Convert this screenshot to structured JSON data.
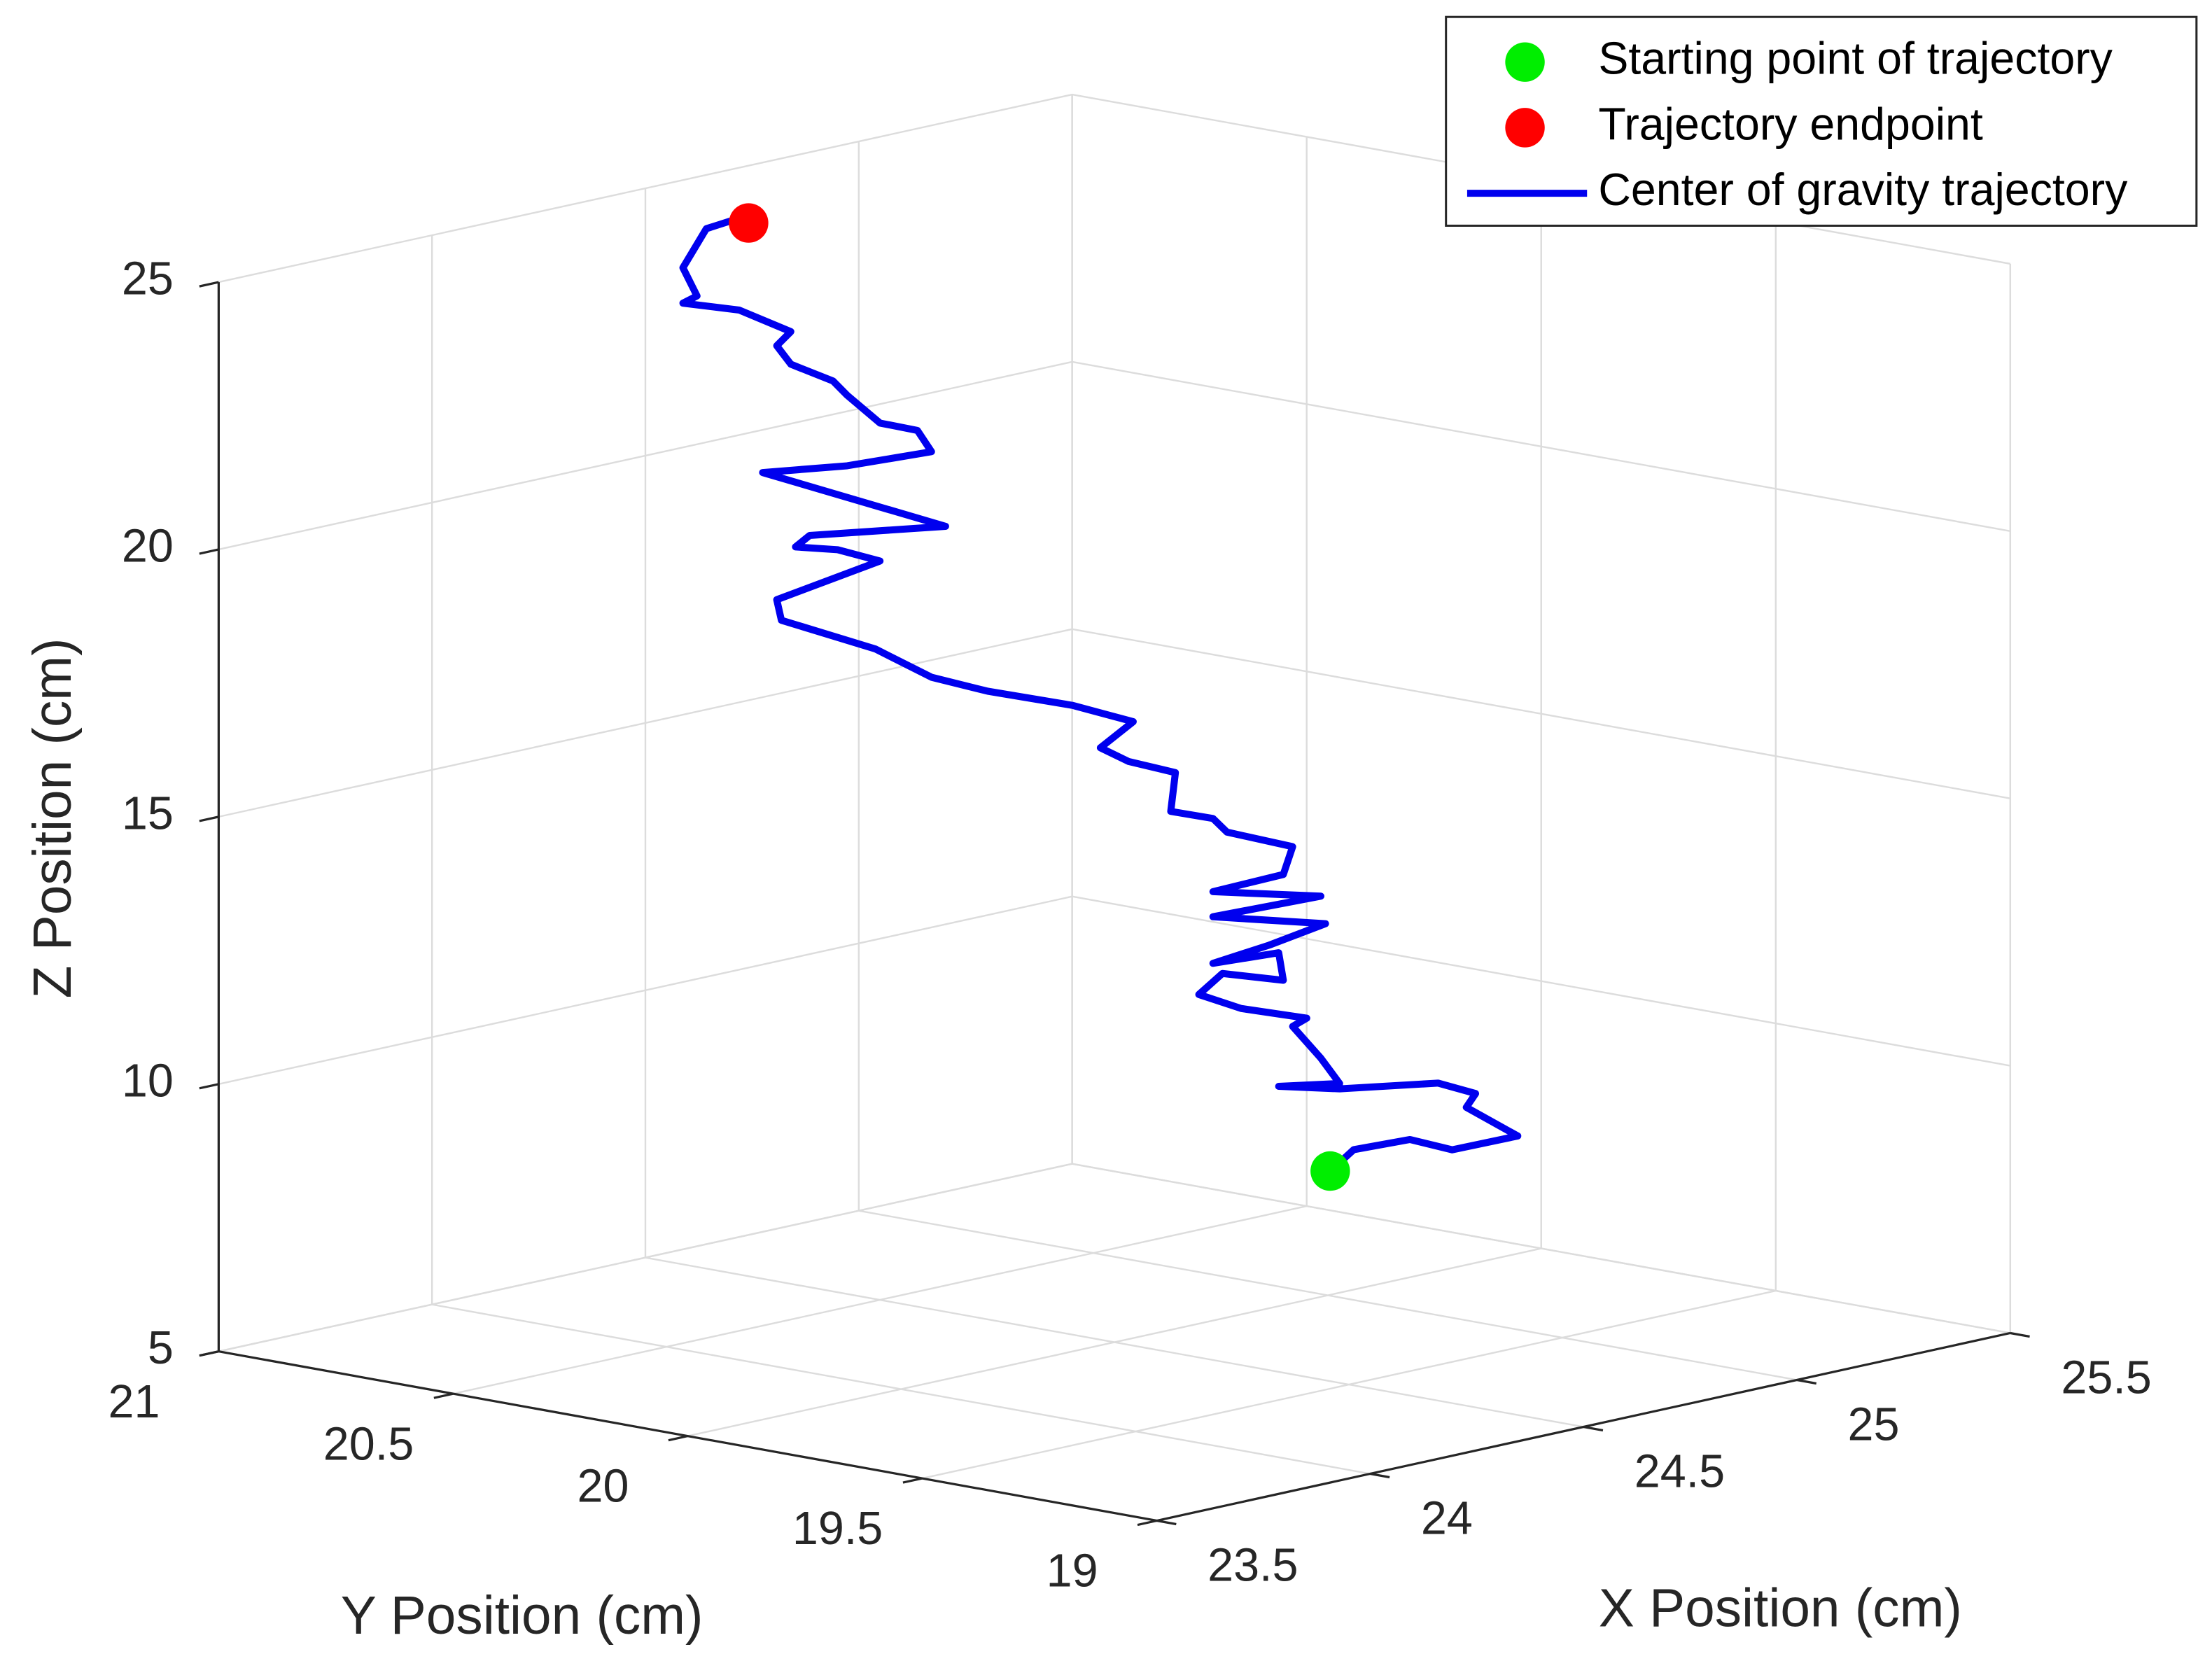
{
  "chart_data": {
    "type": "line3d",
    "xlabel": "X Position (cm)",
    "ylabel": "Y Position (cm)",
    "zlabel": "Z Position (cm)",
    "xlim": [
      23.5,
      25.5
    ],
    "xticks": [
      23.5,
      24,
      24.5,
      25,
      25.5
    ],
    "ylim": [
      19,
      21
    ],
    "yticks": [
      19,
      19.5,
      20,
      20.5,
      21
    ],
    "zlim": [
      5,
      25
    ],
    "zticks": [
      5,
      10,
      15,
      20,
      25
    ],
    "grid": true,
    "legend": "upper right",
    "series": [
      {
        "name": "Starting point of trajectory",
        "color": "#00ee00",
        "marker": "circle",
        "x": [
          24.5
        ],
        "y": [
          19.54
        ],
        "z": [
          8.93
        ]
      },
      {
        "name": "Trajectory endpoint",
        "color": "#ff0000",
        "marker": "circle",
        "x": [
          24.5
        ],
        "y": [
          20.78
        ],
        "z": [
          24.7
        ]
      },
      {
        "name": "Center of gravity trajectory",
        "color": "#0000ee",
        "marker": "line",
        "x": [
          24.5,
          24.5,
          24.5,
          24.5,
          24.5,
          24.5,
          24.5,
          24.5,
          24.5,
          24.5,
          24.5,
          24.5,
          24.5,
          24.5,
          24.5,
          24.5,
          24.5,
          24.5,
          24.5,
          24.5,
          24.5,
          24.5,
          24.5,
          24.5,
          24.5,
          24.5,
          24.5,
          24.5,
          24.5,
          24.5,
          24.5,
          24.5,
          24.5,
          24.5,
          24.5,
          24.5,
          24.5,
          24.5,
          24.5,
          24.5,
          24.5,
          24.5,
          24.5,
          24.5,
          24.5,
          24.5,
          24.5,
          24.5,
          24.5,
          24.5,
          24.5,
          24.5,
          24.5,
          24.5,
          24.5,
          24.5,
          24.5,
          24.5,
          24.5,
          24.5,
          24.5,
          24.5
        ],
        "y": [
          19.54,
          19.49,
          19.37,
          19.28,
          19.14,
          19.25,
          19.23,
          19.31,
          19.52,
          19.65,
          19.52,
          19.56,
          19.62,
          19.59,
          19.73,
          19.82,
          19.77,
          19.64,
          19.65,
          19.79,
          19.67,
          19.55,
          19.79,
          19.56,
          19.79,
          19.64,
          19.62,
          19.76,
          19.79,
          19.88,
          19.87,
          19.97,
          20.03,
          19.96,
          20.09,
          20.27,
          20.39,
          20.51,
          20.71,
          20.72,
          20.5,
          20.59,
          20.68,
          20.65,
          20.36,
          20.75,
          20.57,
          20.39,
          20.42,
          20.5,
          20.57,
          20.6,
          20.69,
          20.72,
          20.69,
          20.8,
          20.92,
          20.89,
          20.92,
          20.87,
          20.82,
          20.78
        ],
        "z": [
          8.93,
          9.41,
          9.79,
          9.74,
          10.22,
          10.58,
          10.87,
          10.94,
          10.5,
          10.34,
          10.6,
          11.01,
          11.51,
          11.71,
          11.67,
          11.79,
          12.26,
          12.34,
          12.84,
          12.42,
          12.95,
          13.54,
          13.29,
          14.04,
          13.76,
          14.32,
          14.87,
          14.92,
          15.13,
          15.12,
          15.86,
          15.91,
          16.07,
          16.67,
          16.77,
          16.75,
          16.82,
          17.16,
          17.38,
          17.75,
          18.82,
          18.89,
          18.8,
          19.06,
          19.69,
          20.08,
          20.49,
          21.04,
          21.39,
          21.4,
          21.81,
          22.03,
          22.2,
          22.5,
          22.81,
          23.04,
          22.98,
          23.16,
          23.64,
          24.45,
          24.67,
          24.7
        ]
      }
    ]
  }
}
